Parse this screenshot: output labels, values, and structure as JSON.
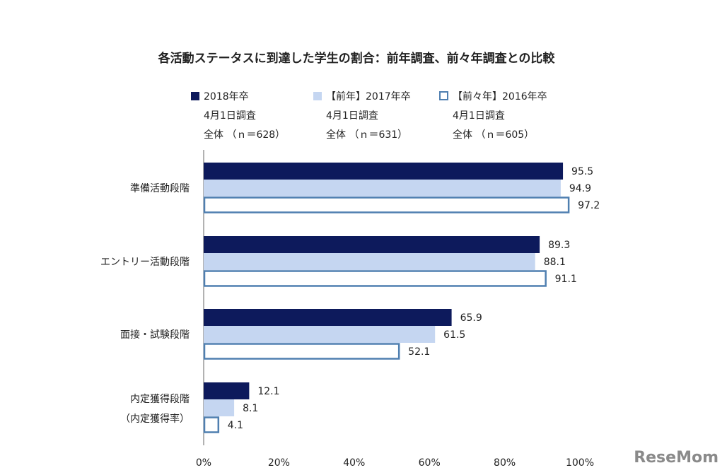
{
  "chart_data": {
    "type": "bar",
    "orientation": "horizontal",
    "title": "各活動ステータスに到達した学生の割合：前年調査、前々年調査との比較",
    "categories": [
      [
        "準備活動段階"
      ],
      [
        "エントリー活動段階"
      ],
      [
        "面接・試験段階"
      ],
      [
        "内定獲得段階",
        "（内定獲得率）"
      ]
    ],
    "series": [
      {
        "name": "2018年卒",
        "name_lines": [
          "2018年卒",
          "4月1日調査",
          "全体 （ｎ＝628）"
        ],
        "values": [
          95.5,
          89.3,
          65.9,
          12.1
        ],
        "color": "#0d1a5c",
        "style": "filled"
      },
      {
        "name": "【前年】2017年卒",
        "name_lines": [
          "【前年】2017年卒",
          "4月1日調査",
          "全体 （ｎ＝631）"
        ],
        "values": [
          94.9,
          88.1,
          61.5,
          8.1
        ],
        "color": "#c5d6f1",
        "style": "filled"
      },
      {
        "name": "【前々年】2016年卒",
        "name_lines": [
          "【前々年】2016年卒",
          "4月1日調査",
          "全体 （ｎ＝605）"
        ],
        "values": [
          97.2,
          91.1,
          52.1,
          4.1
        ],
        "color": "#4f7fb0",
        "style": "outline"
      }
    ],
    "xticks": [
      "0%",
      "20%",
      "40%",
      "60%",
      "80%",
      "100%"
    ],
    "xlim": [
      0,
      100
    ],
    "legend_position": "top",
    "grid": false
  },
  "watermark": "ReseMom"
}
